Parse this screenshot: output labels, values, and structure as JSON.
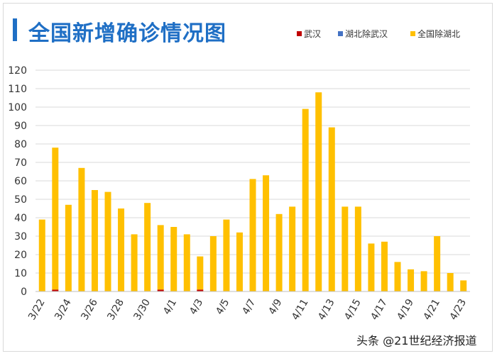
{
  "title": "全国新增确诊情况图",
  "watermark": "头条 @21世纪经济报道",
  "colors": {
    "wuhan": "#c00000",
    "hubei_ex_wuhan": "#4472c4",
    "national_ex_hubei": "#ffc000",
    "title": "#1f6fc5"
  },
  "chart_data": {
    "type": "bar",
    "stacked": true,
    "title": "全国新增确诊情况图",
    "categories": [
      "3/22",
      "3/23",
      "3/24",
      "3/25",
      "3/26",
      "3/27",
      "3/28",
      "3/29",
      "3/30",
      "3/31",
      "4/1",
      "4/2",
      "4/3",
      "4/4",
      "4/5",
      "4/6",
      "4/7",
      "4/8",
      "4/9",
      "4/10",
      "4/11",
      "4/12",
      "4/13",
      "4/14",
      "4/15",
      "4/16",
      "4/17",
      "4/18",
      "4/19",
      "4/20",
      "4/21",
      "4/22",
      "4/23"
    ],
    "tick_labels": [
      "3/22",
      "3/24",
      "3/26",
      "3/28",
      "3/30",
      "4/1",
      "4/3",
      "4/5",
      "4/7",
      "4/9",
      "4/11",
      "4/13",
      "4/15",
      "4/17",
      "4/19",
      "4/21",
      "4/23"
    ],
    "series": [
      {
        "name": "武汉",
        "color": "#c00000",
        "values": [
          0,
          1,
          0,
          0,
          0,
          0,
          0,
          0,
          0,
          1,
          0,
          0,
          1,
          0,
          0,
          0,
          0,
          0,
          0,
          0,
          0,
          0,
          0,
          0,
          0,
          0,
          0,
          0,
          0,
          0,
          0,
          0,
          0
        ]
      },
      {
        "name": "湖北除武汉",
        "color": "#4472c4",
        "values": [
          0,
          0,
          0,
          0,
          0,
          0,
          0,
          0,
          0,
          0,
          0,
          0,
          0,
          0,
          0,
          0,
          0,
          0,
          0,
          0,
          0,
          0,
          0,
          0,
          0,
          0,
          0,
          0,
          0,
          0,
          0,
          0,
          0
        ]
      },
      {
        "name": "全国除湖北",
        "color": "#ffc000",
        "values": [
          39,
          77,
          47,
          67,
          55,
          54,
          45,
          31,
          48,
          35,
          35,
          31,
          18,
          30,
          39,
          32,
          61,
          63,
          42,
          46,
          99,
          108,
          89,
          46,
          46,
          26,
          27,
          16,
          12,
          11,
          30,
          10,
          6
        ]
      }
    ],
    "ylim": [
      0,
      120
    ],
    "yticks": [
      0,
      10,
      20,
      30,
      40,
      50,
      60,
      70,
      80,
      90,
      100,
      110,
      120
    ],
    "grid": true,
    "legend": "top-right"
  }
}
